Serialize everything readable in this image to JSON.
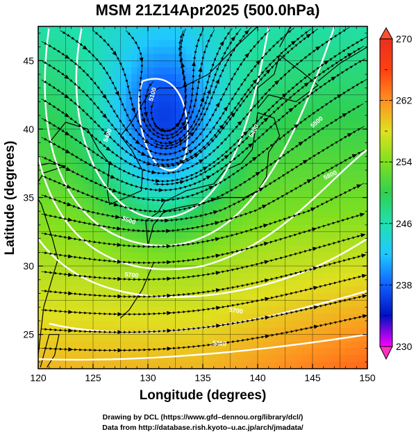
{
  "title": "MSM 21Z14Apr2025 (500.0hPa)",
  "x_axis": {
    "label": "Longitude (degrees)",
    "ticks": [
      "120",
      "125",
      "130",
      "135",
      "140",
      "145",
      "150"
    ],
    "range": [
      120,
      150
    ]
  },
  "y_axis": {
    "label": "Latitude  (degrees)",
    "ticks": [
      "25",
      "30",
      "35",
      "40",
      "45"
    ],
    "range": [
      22.5,
      47.5
    ]
  },
  "colorbar": {
    "labels": [
      "270",
      "262",
      "254",
      "246",
      "238",
      "230"
    ],
    "range": [
      230,
      270
    ],
    "colors": [
      "#ff00ff",
      "#0010c0",
      "#1060ff",
      "#20c8ff",
      "#20e0b0",
      "#30d050",
      "#80e020",
      "#e0e020",
      "#ff9020",
      "#ff4010",
      "#e83020"
    ]
  },
  "contour_labels": [
    "5100",
    "5400",
    "5500",
    "5400",
    "5500",
    "5700",
    "5800",
    "5700",
    "5800"
  ],
  "credits": {
    "line1": "Drawing by DCL (https://www.gfd–dennou.org/library/dcl/)",
    "line2": "Data from http://database.rish.kyoto–u.ac.jp/arch/jmadata/"
  }
}
